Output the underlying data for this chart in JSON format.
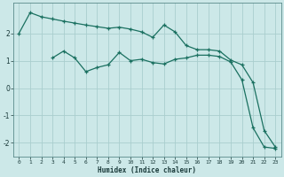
{
  "xlabel": "Humidex (Indice chaleur)",
  "background_color": "#cce8e8",
  "grid_color": "#aacece",
  "line_color": "#1a7060",
  "xlim": [
    -0.5,
    23.5
  ],
  "ylim": [
    -2.5,
    3.1
  ],
  "yticks": [
    -2,
    -1,
    0,
    1,
    2
  ],
  "xticks": [
    0,
    1,
    2,
    3,
    4,
    5,
    6,
    7,
    8,
    9,
    10,
    11,
    12,
    13,
    14,
    15,
    16,
    17,
    18,
    19,
    20,
    21,
    22,
    23
  ],
  "series1_x": [
    0,
    1,
    2,
    3,
    4,
    5,
    6,
    7,
    8,
    9,
    10,
    11,
    12,
    13,
    14,
    15,
    16,
    17,
    18,
    19,
    20,
    21,
    22,
    23
  ],
  "series1_y": [
    2.0,
    2.75,
    2.6,
    2.52,
    2.44,
    2.37,
    2.3,
    2.24,
    2.18,
    2.22,
    2.15,
    2.05,
    1.85,
    2.3,
    2.05,
    1.55,
    1.4,
    1.4,
    1.35,
    1.02,
    0.85,
    0.2,
    -1.55,
    -2.15
  ],
  "series2_x": [
    3,
    4,
    5,
    6,
    7,
    8,
    9,
    10,
    11,
    12,
    13,
    14,
    15,
    16,
    17,
    18,
    19,
    20,
    21,
    22,
    23
  ],
  "series2_y": [
    1.1,
    1.35,
    1.1,
    0.6,
    0.75,
    0.85,
    1.3,
    1.0,
    1.05,
    0.93,
    0.88,
    1.05,
    1.1,
    1.2,
    1.2,
    1.15,
    0.95,
    0.3,
    -1.45,
    -2.15,
    -2.2
  ]
}
